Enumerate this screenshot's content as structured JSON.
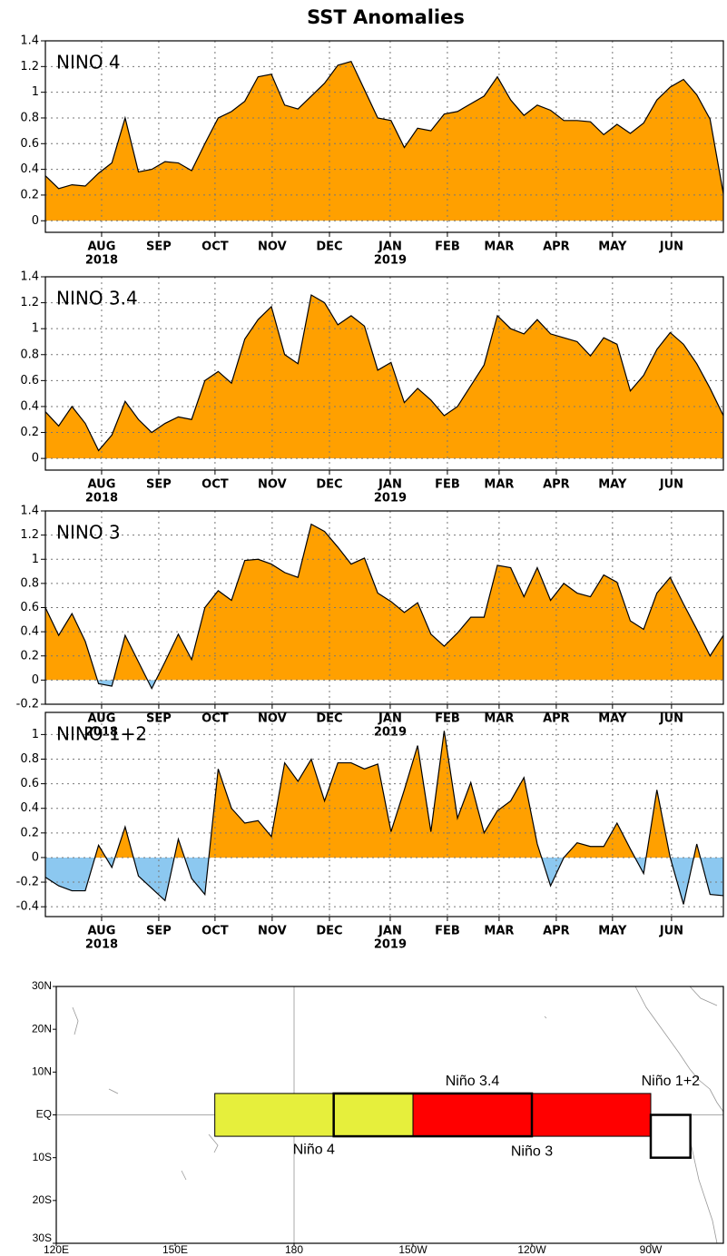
{
  "title": "SST Anomalies",
  "chart_data": [
    {
      "type": "area",
      "label": "NINO 4",
      "x": [
        0,
        1,
        2,
        3,
        4,
        5,
        6,
        7,
        8,
        9,
        10,
        11,
        12,
        13,
        14,
        15,
        16,
        17,
        18,
        19,
        20,
        21,
        22,
        23,
        24,
        25,
        26,
        27,
        28,
        29,
        30,
        31,
        32,
        33,
        34,
        35,
        36,
        37,
        38,
        39,
        40,
        41,
        42,
        43,
        44,
        45,
        46,
        47,
        48,
        49,
        50,
        51
      ],
      "values": [
        0.35,
        0.25,
        0.28,
        0.27,
        0.37,
        0.45,
        0.8,
        0.38,
        0.4,
        0.46,
        0.45,
        0.39,
        0.6,
        0.8,
        0.85,
        0.93,
        1.12,
        1.14,
        0.9,
        0.87,
        0.97,
        1.07,
        1.21,
        1.24,
        1.02,
        0.8,
        0.78,
        0.57,
        0.72,
        0.7,
        0.83,
        0.85,
        0.91,
        0.97,
        1.12,
        0.94,
        0.82,
        0.9,
        0.86,
        0.78,
        0.78,
        0.77,
        0.67,
        0.75,
        0.68,
        0.76,
        0.94,
        1.04,
        1.1,
        0.98,
        0.79,
        0.21
      ],
      "xlim": [
        0,
        51
      ],
      "xticks": [
        {
          "value": 4.23,
          "label": "AUG"
        },
        {
          "value": 8.53,
          "label": "SEP"
        },
        {
          "value": 12.76,
          "label": "OCT"
        },
        {
          "value": 17.06,
          "label": "NOV"
        },
        {
          "value": 21.37,
          "label": "DEC"
        },
        {
          "value": 25.94,
          "label": "JAN"
        },
        {
          "value": 30.24,
          "label": "FEB"
        },
        {
          "value": 34.13,
          "label": "MAR"
        },
        {
          "value": 38.43,
          "label": "APR"
        },
        {
          "value": 42.66,
          "label": "MAY"
        },
        {
          "value": 47.1,
          "label": "JUN"
        }
      ],
      "year_labels": [
        {
          "value": 4.23,
          "label": "2018"
        },
        {
          "value": 25.94,
          "label": "2019"
        }
      ],
      "ylim": [
        -0.09,
        1.4
      ],
      "yticks": [
        0,
        0.2,
        0.4,
        0.6,
        0.8,
        1,
        1.2,
        1.4
      ],
      "grid": true,
      "color_positive": "#ffa000",
      "color_negative": "#8cc8f0"
    },
    {
      "type": "area",
      "label": "NINO 3.4",
      "x": [
        0,
        1,
        2,
        3,
        4,
        5,
        6,
        7,
        8,
        9,
        10,
        11,
        12,
        13,
        14,
        15,
        16,
        17,
        18,
        19,
        20,
        21,
        22,
        23,
        24,
        25,
        26,
        27,
        28,
        29,
        30,
        31,
        32,
        33,
        34,
        35,
        36,
        37,
        38,
        39,
        40,
        41,
        42,
        43,
        44,
        45,
        46,
        47,
        48,
        49,
        50,
        51
      ],
      "values": [
        0.36,
        0.25,
        0.4,
        0.27,
        0.06,
        0.18,
        0.44,
        0.3,
        0.2,
        0.27,
        0.32,
        0.3,
        0.6,
        0.67,
        0.58,
        0.92,
        1.07,
        1.17,
        0.8,
        0.73,
        1.26,
        1.2,
        1.03,
        1.1,
        1.02,
        0.68,
        0.74,
        0.43,
        0.54,
        0.45,
        0.33,
        0.4,
        0.56,
        0.72,
        1.1,
        1.0,
        0.96,
        1.07,
        0.96,
        0.93,
        0.9,
        0.79,
        0.93,
        0.88,
        0.52,
        0.64,
        0.84,
        0.97,
        0.88,
        0.73,
        0.54,
        0.33
      ],
      "xlim": [
        0,
        51
      ],
      "xticks": [
        {
          "value": 4.23,
          "label": "AUG"
        },
        {
          "value": 8.53,
          "label": "SEP"
        },
        {
          "value": 12.76,
          "label": "OCT"
        },
        {
          "value": 17.06,
          "label": "NOV"
        },
        {
          "value": 21.37,
          "label": "DEC"
        },
        {
          "value": 25.94,
          "label": "JAN"
        },
        {
          "value": 30.24,
          "label": "FEB"
        },
        {
          "value": 34.13,
          "label": "MAR"
        },
        {
          "value": 38.43,
          "label": "APR"
        },
        {
          "value": 42.66,
          "label": "MAY"
        },
        {
          "value": 47.1,
          "label": "JUN"
        }
      ],
      "year_labels": [
        {
          "value": 4.23,
          "label": "2018"
        },
        {
          "value": 25.94,
          "label": "2019"
        }
      ],
      "ylim": [
        -0.09,
        1.4
      ],
      "yticks": [
        0,
        0.2,
        0.4,
        0.6,
        0.8,
        1,
        1.2,
        1.4
      ],
      "grid": true,
      "color_positive": "#ffa000",
      "color_negative": "#8cc8f0"
    },
    {
      "type": "area",
      "label": "NINO 3",
      "x": [
        0,
        1,
        2,
        3,
        4,
        5,
        6,
        7,
        8,
        9,
        10,
        11,
        12,
        13,
        14,
        15,
        16,
        17,
        18,
        19,
        20,
        21,
        22,
        23,
        24,
        25,
        26,
        27,
        28,
        29,
        30,
        31,
        32,
        33,
        34,
        35,
        36,
        37,
        38,
        39,
        40,
        41,
        42,
        43,
        44,
        45,
        46,
        47,
        48,
        49,
        50,
        51
      ],
      "values": [
        0.6,
        0.37,
        0.55,
        0.32,
        -0.03,
        -0.05,
        0.37,
        0.15,
        -0.07,
        0.15,
        0.38,
        0.17,
        0.6,
        0.74,
        0.66,
        0.99,
        1.0,
        0.96,
        0.89,
        0.85,
        1.29,
        1.23,
        1.1,
        0.96,
        1.01,
        0.72,
        0.65,
        0.56,
        0.64,
        0.38,
        0.28,
        0.39,
        0.52,
        0.52,
        0.95,
        0.93,
        0.69,
        0.93,
        0.66,
        0.8,
        0.72,
        0.69,
        0.87,
        0.81,
        0.49,
        0.42,
        0.72,
        0.85,
        0.63,
        0.42,
        0.2,
        0.37
      ],
      "xlim": [
        0,
        51
      ],
      "xticks": [
        {
          "value": 4.23,
          "label": "AUG"
        },
        {
          "value": 8.53,
          "label": "SEP"
        },
        {
          "value": 12.76,
          "label": "OCT"
        },
        {
          "value": 17.06,
          "label": "NOV"
        },
        {
          "value": 21.37,
          "label": "DEC"
        },
        {
          "value": 25.94,
          "label": "JAN"
        },
        {
          "value": 30.24,
          "label": "FEB"
        },
        {
          "value": 34.13,
          "label": "MAR"
        },
        {
          "value": 38.43,
          "label": "APR"
        },
        {
          "value": 42.66,
          "label": "MAY"
        },
        {
          "value": 47.1,
          "label": "JUN"
        }
      ],
      "year_labels": [
        {
          "value": 4.23,
          "label": "2018"
        },
        {
          "value": 25.94,
          "label": "2019"
        }
      ],
      "ylim": [
        -0.2,
        1.4
      ],
      "yticks": [
        -0.2,
        0,
        0.2,
        0.4,
        0.6,
        0.8,
        1,
        1.2,
        1.4
      ],
      "grid": true,
      "color_positive": "#ffa000",
      "color_negative": "#8cc8f0"
    },
    {
      "type": "area",
      "label": "NINO 1+2",
      "x": [
        0,
        1,
        2,
        3,
        4,
        5,
        6,
        7,
        8,
        9,
        10,
        11,
        12,
        13,
        14,
        15,
        16,
        17,
        18,
        19,
        20,
        21,
        22,
        23,
        24,
        25,
        26,
        27,
        28,
        29,
        30,
        31,
        32,
        33,
        34,
        35,
        36,
        37,
        38,
        39,
        40,
        41,
        42,
        43,
        44,
        45,
        46,
        47,
        48,
        49,
        50,
        51
      ],
      "values": [
        -0.16,
        -0.23,
        -0.27,
        -0.27,
        0.1,
        -0.08,
        0.25,
        -0.15,
        -0.25,
        -0.35,
        0.15,
        -0.17,
        -0.3,
        0.72,
        0.4,
        0.28,
        0.3,
        0.17,
        0.77,
        0.62,
        0.8,
        0.46,
        0.77,
        0.77,
        0.72,
        0.76,
        0.21,
        0.55,
        0.91,
        0.21,
        1.03,
        0.32,
        0.61,
        0.2,
        0.38,
        0.46,
        0.65,
        0.11,
        -0.23,
        0.0,
        0.12,
        0.09,
        0.09,
        0.28,
        0.07,
        -0.13,
        0.55,
        0.0,
        -0.38,
        0.11,
        -0.3,
        -0.31
      ],
      "xlim": [
        0,
        51
      ],
      "xticks": [
        {
          "value": 4.23,
          "label": "AUG"
        },
        {
          "value": 8.53,
          "label": "SEP"
        },
        {
          "value": 12.76,
          "label": "OCT"
        },
        {
          "value": 17.06,
          "label": "NOV"
        },
        {
          "value": 21.37,
          "label": "DEC"
        },
        {
          "value": 25.94,
          "label": "JAN"
        },
        {
          "value": 30.24,
          "label": "FEB"
        },
        {
          "value": 34.13,
          "label": "MAR"
        },
        {
          "value": 38.43,
          "label": "APR"
        },
        {
          "value": 42.66,
          "label": "MAY"
        },
        {
          "value": 47.1,
          "label": "JUN"
        }
      ],
      "year_labels": [
        {
          "value": 4.23,
          "label": "2018"
        },
        {
          "value": 25.94,
          "label": "2019"
        }
      ],
      "ylim": [
        -0.48,
        1.18
      ],
      "yticks": [
        -0.4,
        -0.2,
        0,
        0.2,
        0.4,
        0.6,
        0.8,
        1
      ],
      "grid": true,
      "color_positive": "#ffa000",
      "color_negative": "#8cc8f0"
    }
  ],
  "map": {
    "lat_labels": [
      "30N",
      "20N",
      "10N",
      "EQ",
      "10S",
      "20S",
      "30S"
    ],
    "lon_labels": [
      "120E",
      "150E",
      "180",
      "150W",
      "120W",
      "90W"
    ],
    "regions": [
      "Niño 4",
      "Niño 3.4",
      "Niño 3",
      "Niño 1+2"
    ]
  }
}
